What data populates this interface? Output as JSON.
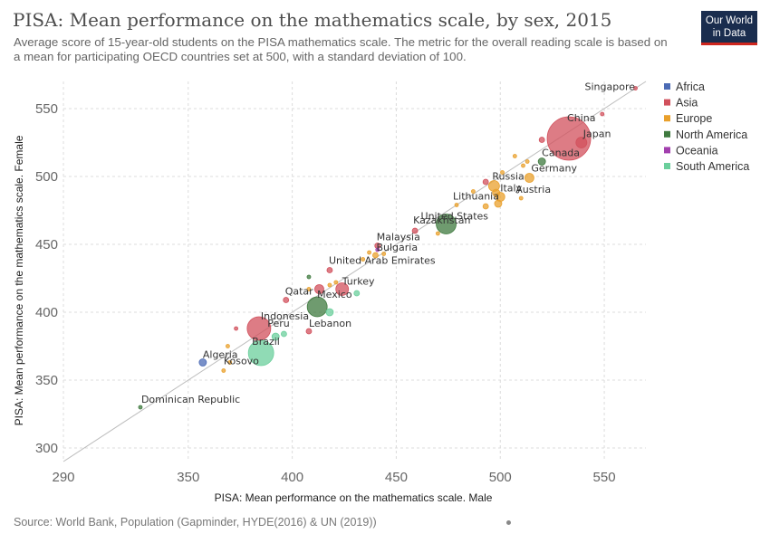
{
  "header": {
    "title": "PISA: Mean performance on the mathematics scale, by sex, 2015",
    "subtitle": "Average score of 15-year-old students on the PISA mathematics scale. The metric for the overall reading scale is based on a mean for participating OECD countries set at 500, with a standard deviation of 100.",
    "logo_line1": "Our World",
    "logo_line2": "in Data"
  },
  "footer": {
    "source": "Source: World Bank, Population (Gapminder, HYDE(2016) & UN (2019))"
  },
  "chart_data": {
    "type": "scatter",
    "xlabel": "PISA: Mean performance on the mathematics scale. Male",
    "ylabel": "PISA: Mean performance on the mathematics scale. Female",
    "xlim": [
      290,
      570
    ],
    "ylim": [
      290,
      570
    ],
    "x_ticks": [
      290,
      350,
      400,
      450,
      500,
      550
    ],
    "y_ticks": [
      300,
      350,
      400,
      450,
      500,
      550
    ],
    "grid": true,
    "reference_line": "y = x",
    "legend_position": "right",
    "regions": [
      {
        "name": "Africa",
        "color": "#4c6bb5"
      },
      {
        "name": "Asia",
        "color": "#d1505c"
      },
      {
        "name": "Europe",
        "color": "#e9a02c"
      },
      {
        "name": "North America",
        "color": "#3f7a3f"
      },
      {
        "name": "Oceania",
        "color": "#a23fae"
      },
      {
        "name": "South America",
        "color": "#6bcf9c"
      }
    ],
    "points": [
      {
        "label": "Singapore",
        "x": 565,
        "y": 565,
        "region": "Asia",
        "size": 2
      },
      {
        "label": "China",
        "x": 533,
        "y": 528,
        "region": "Asia",
        "size": 24
      },
      {
        "label": "Japan",
        "x": 539,
        "y": 525,
        "region": "Asia",
        "size": 6
      },
      {
        "label": "",
        "x": 520,
        "y": 527,
        "region": "Asia",
        "size": 3
      },
      {
        "label": "",
        "x": 549,
        "y": 546,
        "region": "Asia",
        "size": 2
      },
      {
        "label": "Canada",
        "x": 520,
        "y": 511,
        "region": "North America",
        "size": 4
      },
      {
        "label": "Germany",
        "x": 514,
        "y": 499,
        "region": "Europe",
        "size": 5
      },
      {
        "label": "Russia",
        "x": 497,
        "y": 493,
        "region": "Europe",
        "size": 6
      },
      {
        "label": "",
        "x": 493,
        "y": 496,
        "region": "Asia",
        "size": 3
      },
      {
        "label": "Italy",
        "x": 500,
        "y": 485,
        "region": "Europe",
        "size": 5
      },
      {
        "label": "Austria",
        "x": 510,
        "y": 484,
        "region": "Europe",
        "size": 2
      },
      {
        "label": "Lithuania",
        "x": 479,
        "y": 479,
        "region": "Europe",
        "size": 2
      },
      {
        "label": "",
        "x": 498,
        "y": 488,
        "region": "Europe",
        "size": 4
      },
      {
        "label": "",
        "x": 499,
        "y": 480,
        "region": "Europe",
        "size": 4
      },
      {
        "label": "",
        "x": 493,
        "y": 478,
        "region": "Europe",
        "size": 3
      },
      {
        "label": "",
        "x": 507,
        "y": 515,
        "region": "Europe",
        "size": 2
      },
      {
        "label": "",
        "x": 513,
        "y": 511,
        "region": "Europe",
        "size": 2
      },
      {
        "label": "",
        "x": 511,
        "y": 508,
        "region": "Europe",
        "size": 2
      },
      {
        "label": "",
        "x": 501,
        "y": 503,
        "region": "Europe",
        "size": 2
      },
      {
        "label": "",
        "x": 487,
        "y": 489,
        "region": "Europe",
        "size": 2
      },
      {
        "label": "",
        "x": 470,
        "y": 458,
        "region": "Europe",
        "size": 2
      },
      {
        "label": "United States",
        "x": 474,
        "y": 465,
        "region": "North America",
        "size": 11
      },
      {
        "label": "Kazakhstan",
        "x": 459,
        "y": 460,
        "region": "Asia",
        "size": 3
      },
      {
        "label": "Malaysia",
        "x": 441,
        "y": 449,
        "region": "Asia",
        "size": 3
      },
      {
        "label": "",
        "x": 441,
        "y": 446,
        "region": "Oceania",
        "size": 2
      },
      {
        "label": "Bulgaria",
        "x": 440,
        "y": 442,
        "region": "Europe",
        "size": 3
      },
      {
        "label": "",
        "x": 444,
        "y": 443,
        "region": "Europe",
        "size": 2
      },
      {
        "label": "",
        "x": 434,
        "y": 439,
        "region": "Europe",
        "size": 2
      },
      {
        "label": "",
        "x": 437,
        "y": 444,
        "region": "Europe",
        "size": 2
      },
      {
        "label": "United Arab Emirates",
        "x": 418,
        "y": 431,
        "region": "Asia",
        "size": 3
      },
      {
        "label": "Turkey",
        "x": 424,
        "y": 417,
        "region": "Asia",
        "size": 7
      },
      {
        "label": "",
        "x": 413,
        "y": 417,
        "region": "Asia",
        "size": 5
      },
      {
        "label": "",
        "x": 408,
        "y": 417,
        "region": "Europe",
        "size": 2
      },
      {
        "label": "",
        "x": 418,
        "y": 420,
        "region": "Europe",
        "size": 2
      },
      {
        "label": "",
        "x": 421,
        "y": 422,
        "region": "Europe",
        "size": 2
      },
      {
        "label": "",
        "x": 408,
        "y": 426,
        "region": "North America",
        "size": 2
      },
      {
        "label": "",
        "x": 431,
        "y": 414,
        "region": "South America",
        "size": 3
      },
      {
        "label": "Qatar",
        "x": 397,
        "y": 409,
        "region": "Asia",
        "size": 3
      },
      {
        "label": "Mexico",
        "x": 412,
        "y": 404,
        "region": "North America",
        "size": 11
      },
      {
        "label": "",
        "x": 418,
        "y": 400,
        "region": "South America",
        "size": 4
      },
      {
        "label": "Indonesia",
        "x": 384,
        "y": 388,
        "region": "Asia",
        "size": 13
      },
      {
        "label": "",
        "x": 373,
        "y": 388,
        "region": "Asia",
        "size": 2
      },
      {
        "label": "Lebanon",
        "x": 408,
        "y": 386,
        "region": "Asia",
        "size": 3
      },
      {
        "label": "Peru",
        "x": 392,
        "y": 382,
        "region": "South America",
        "size": 4
      },
      {
        "label": "",
        "x": 396,
        "y": 384,
        "region": "South America",
        "size": 3
      },
      {
        "label": "Brazil",
        "x": 385,
        "y": 370,
        "region": "South America",
        "size": 14
      },
      {
        "label": "",
        "x": 369,
        "y": 375,
        "region": "Europe",
        "size": 2
      },
      {
        "label": "Algeria",
        "x": 357,
        "y": 363,
        "region": "Africa",
        "size": 4
      },
      {
        "label": "",
        "x": 370,
        "y": 363,
        "region": "Europe",
        "size": 2
      },
      {
        "label": "Kosovo",
        "x": 367,
        "y": 357,
        "region": "Europe",
        "size": 2
      },
      {
        "label": "Dominican Republic",
        "x": 327,
        "y": 330,
        "region": "North America",
        "size": 2
      }
    ]
  }
}
